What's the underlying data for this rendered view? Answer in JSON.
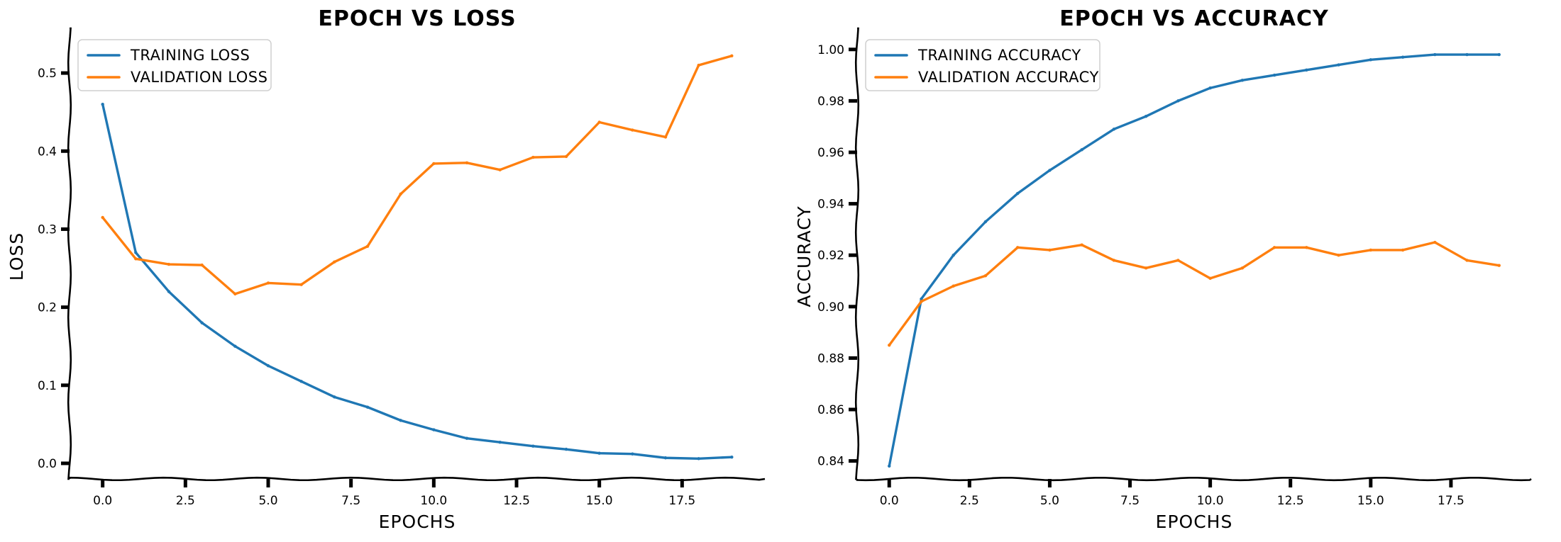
{
  "chart_data": [
    {
      "type": "line",
      "title": "EPOCH VS LOSS",
      "xlabel": "EPOCHS",
      "ylabel": "LOSS",
      "xlim": [
        -1,
        20
      ],
      "ylim": [
        -0.02,
        0.55
      ],
      "x_ticks": [
        0,
        2.5,
        5,
        7.5,
        10,
        12.5,
        15,
        17.5
      ],
      "x_tick_labels": [
        "0.0",
        "2.5",
        "5.0",
        "7.5",
        "10.0",
        "12.5",
        "15.0",
        "17.5"
      ],
      "y_ticks": [
        0,
        0.1,
        0.2,
        0.3,
        0.4,
        0.5
      ],
      "y_tick_labels": [
        "0.0",
        "0.1",
        "0.2",
        "0.3",
        "0.4",
        "0.5"
      ],
      "legend": "top-left",
      "grid": false,
      "x": [
        0,
        1,
        2,
        3,
        4,
        5,
        6,
        7,
        8,
        9,
        10,
        11,
        12,
        13,
        14,
        15,
        16,
        17,
        18,
        19
      ],
      "series": [
        {
          "name": "TRAINING LOSS",
          "color": "#1f77b4",
          "values": [
            0.46,
            0.27,
            0.22,
            0.18,
            0.15,
            0.125,
            0.105,
            0.085,
            0.072,
            0.055,
            0.043,
            0.032,
            0.027,
            0.022,
            0.018,
            0.013,
            0.012,
            0.007,
            0.006,
            0.008
          ]
        },
        {
          "name": "VALIDATION LOSS",
          "color": "#ff7f0e",
          "values": [
            0.315,
            0.262,
            0.255,
            0.254,
            0.217,
            0.231,
            0.229,
            0.258,
            0.278,
            0.345,
            0.384,
            0.385,
            0.376,
            0.392,
            0.393,
            0.437,
            0.427,
            0.418,
            0.51,
            0.522
          ]
        }
      ]
    },
    {
      "type": "line",
      "title": "EPOCH VS ACCURACY",
      "xlabel": "EPOCHS",
      "ylabel": "ACCURACY",
      "xlim": [
        -1,
        20
      ],
      "ylim": [
        0.833,
        1.006
      ],
      "x_ticks": [
        0,
        2.5,
        5,
        7.5,
        10,
        12.5,
        15,
        17.5
      ],
      "x_tick_labels": [
        "0.0",
        "2.5",
        "5.0",
        "7.5",
        "10.0",
        "12.5",
        "15.0",
        "17.5"
      ],
      "y_ticks": [
        0.84,
        0.86,
        0.88,
        0.9,
        0.92,
        0.94,
        0.96,
        0.98,
        1.0
      ],
      "y_tick_labels": [
        "0.84",
        "0.86",
        "0.88",
        "0.90",
        "0.92",
        "0.94",
        "0.96",
        "0.98",
        "1.00"
      ],
      "legend": "top-left",
      "grid": false,
      "x": [
        0,
        1,
        2,
        3,
        4,
        5,
        6,
        7,
        8,
        9,
        10,
        11,
        12,
        13,
        14,
        15,
        16,
        17,
        18,
        19
      ],
      "series": [
        {
          "name": "TRAINING ACCURACY",
          "color": "#1f77b4",
          "values": [
            0.838,
            0.903,
            0.92,
            0.933,
            0.944,
            0.953,
            0.961,
            0.969,
            0.974,
            0.98,
            0.985,
            0.988,
            0.99,
            0.992,
            0.994,
            0.996,
            0.997,
            0.998,
            0.998,
            0.998
          ]
        },
        {
          "name": "VALIDATION ACCURACY",
          "color": "#ff7f0e",
          "values": [
            0.885,
            0.902,
            0.908,
            0.912,
            0.923,
            0.922,
            0.924,
            0.918,
            0.915,
            0.918,
            0.911,
            0.915,
            0.923,
            0.923,
            0.92,
            0.922,
            0.922,
            0.925,
            0.918,
            0.916
          ]
        }
      ]
    }
  ]
}
